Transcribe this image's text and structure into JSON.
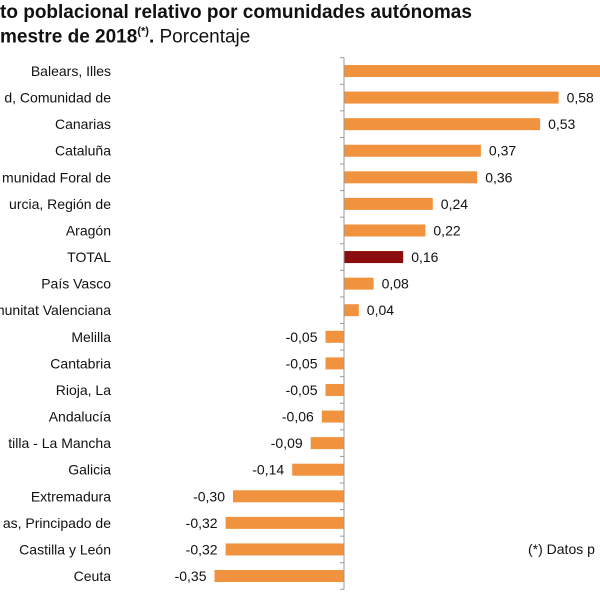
{
  "title_line1": "to poblacional relativo por comunidades autónomas",
  "title_line2_bold": "mestre de 2018",
  "title_line2_sup": "(*)",
  "title_line2_dot": ".",
  "title_line2_rest": " Porcentaje",
  "footnote": "(*) Datos p",
  "colors": {
    "bar": "#f0923e",
    "total": "#8b0d0d",
    "axis": "#999999"
  },
  "chart_data": {
    "type": "bar",
    "orientation": "horizontal",
    "categories": [
      "Balears, Illes",
      "d, Comunidad de",
      "Canarias",
      "Cataluña",
      "munidad Foral de",
      "urcia, Región de",
      "Aragón",
      "TOTAL",
      "País Vasco",
      "munitat Valenciana",
      "Melilla",
      "Cantabria",
      "Rioja, La",
      "Andalucía",
      "tilla - La Mancha",
      "Galicia",
      "Extremadura",
      "as, Principado de",
      "Castilla y León",
      "Ceuta"
    ],
    "values": [
      0.75,
      0.58,
      0.53,
      0.37,
      0.36,
      0.24,
      0.22,
      0.16,
      0.08,
      0.04,
      -0.05,
      -0.05,
      -0.05,
      -0.06,
      -0.09,
      -0.14,
      -0.3,
      -0.32,
      -0.32,
      -0.35
    ],
    "labels": [
      "",
      "0,58",
      "0,53",
      "0,37",
      "0,36",
      "0,24",
      "0,22",
      "0,16",
      "0,08",
      "0,04",
      "-0,05",
      "-0,05",
      "-0,05",
      "-0,06",
      "-0,09",
      "-0,14",
      "-0,30",
      "-0,32",
      "-0,32",
      "-0,35"
    ],
    "highlight": "TOTAL",
    "grid": false
  }
}
